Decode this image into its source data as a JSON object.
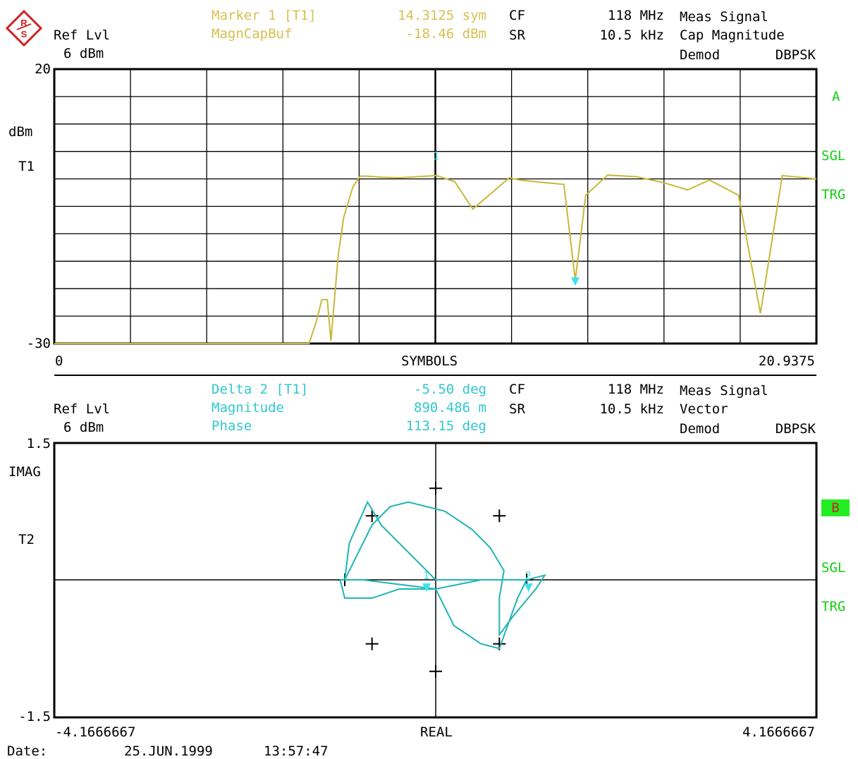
{
  "top": {
    "ref_label": "Ref Lvl",
    "ref_value": "6 dBm",
    "marker_label": "Marker 1 [T1]",
    "marker_value": "14.3125 sym",
    "trace_label": "MagnCapBuf",
    "trace_value": "-18.46 dBm",
    "cf_label": "CF",
    "cf_value": "118 MHz",
    "sr_label": "SR",
    "sr_value": "10.5 kHz",
    "meas_label": "Meas Signal",
    "meas_value": "Cap Magnitude",
    "demod_label": "Demod",
    "demod_value": "DBPSK",
    "side": [
      "A",
      "SGL",
      "TRG"
    ],
    "unit": "dBm",
    "trace": "T1",
    "y_top": "20",
    "y_bottom": "-30",
    "x_left": "0",
    "x_center": "SYMBOLS",
    "x_right": "20.9375",
    "marker_num": "1"
  },
  "bottom": {
    "ref_label": "Ref Lvl",
    "ref_value": "6 dBm",
    "delta_label": "Delta 2 [T1]",
    "delta_value": "-5.50 deg",
    "mag_label": "Magnitude",
    "mag_value": "890.486 m",
    "phase_label": "Phase",
    "phase_value": "113.15 deg",
    "cf_label": "CF",
    "cf_value": "118 MHz",
    "sr_label": "SR",
    "sr_value": "10.5 kHz",
    "meas_label": "Meas Signal",
    "meas_value": "Vector",
    "demod_label": "Demod",
    "demod_value": "DBPSK",
    "side": [
      "B",
      "SGL",
      "TRG"
    ],
    "y_label": "IMAG",
    "trace": "T2",
    "y_top": "1.5",
    "y_bottom": "-1.5",
    "x_left": "-4.1666667",
    "x_center": "REAL",
    "x_right": "4.1666667",
    "marker_nums": [
      "1",
      "2"
    ]
  },
  "footer": {
    "date_label": "Date:",
    "date_value": "25.JUN.1999",
    "time_value": "13:57:47"
  },
  "colors": {
    "trace_top": "#c8b838",
    "trace_bottom": "#20b4b4",
    "marker": "#40e0f0",
    "header_yellow": "#d8c050",
    "header_cyan": "#30c8d0",
    "side_green": "#10d010",
    "badge_bg": "#22ee22",
    "badge_text": "#cc2222"
  },
  "chart_data": [
    {
      "type": "line",
      "title": "",
      "xlabel": "SYMBOLS",
      "ylabel": "dBm",
      "xlim": [
        0,
        20.9375
      ],
      "ylim": [
        -30,
        20
      ],
      "grid": true,
      "series": [
        {
          "x": [
            0,
            7,
            7.2,
            7.35,
            7.5,
            7.6,
            7.8,
            7.95,
            8.2,
            8.4,
            8.6,
            9.0,
            9.5,
            10.5,
            11.0,
            11.5,
            12.5,
            12.8,
            13.2,
            14.0,
            14.3125,
            14.6,
            15.2,
            16.0,
            16.8,
            17.4,
            18.0,
            18.8,
            19.4,
            20.0,
            20.9375
          ],
          "y": [
            -30,
            -30,
            -26,
            -22,
            -22,
            -29.5,
            -14,
            -7,
            -1.5,
            0.5,
            0.5,
            0.3,
            0.2,
            0.6,
            -0.5,
            -5.5,
            0.2,
            -0.2,
            -0.5,
            -1.0,
            -18.46,
            -3.0,
            0.7,
            0.4,
            -0.8,
            -2.0,
            -0.2,
            -3.0,
            -24.5,
            0.6,
            0.0
          ]
        }
      ],
      "markers": [
        {
          "name": "1",
          "x": 14.3125,
          "y": -18.46
        }
      ]
    },
    {
      "type": "scatter",
      "title": "",
      "xlabel": "REAL",
      "ylabel": "IMAG",
      "xlim": [
        -4.1666667,
        4.1666667
      ],
      "ylim": [
        -1.5,
        1.5
      ],
      "grid": false,
      "series": [
        {
          "points": [
            [
              -0.7,
              0.7
            ],
            [
              0.7,
              0.7
            ],
            [
              -1.0,
              0.0
            ],
            [
              1.0,
              0.0
            ],
            [
              -0.7,
              -0.7
            ],
            [
              0.7,
              -0.7
            ],
            [
              0.0,
              1.0
            ],
            [
              0.0,
              -1.0
            ]
          ]
        },
        {
          "x": [
            -1.0,
            -0.7,
            -0.5,
            -0.3,
            0.1,
            0.4,
            0.6,
            0.75,
            0.7,
            0.7,
            0.85,
            1.1,
            1.2,
            1.0,
            0.9,
            0.7,
            0.5,
            0.2,
            0.0,
            -0.4,
            -0.7,
            -1.0,
            -1.05,
            -0.8,
            -0.4,
            0.0,
            0.5,
            1.0,
            0.6,
            0.3,
            0.0,
            -0.3,
            -0.6,
            -0.75,
            -0.95,
            -1.0
          ],
          "y": [
            0.0,
            0.6,
            0.8,
            0.85,
            0.75,
            0.55,
            0.35,
            0.1,
            -0.2,
            -0.6,
            -0.4,
            -0.1,
            0.05,
            0.0,
            -0.2,
            -0.75,
            -0.7,
            -0.5,
            -0.1,
            -0.1,
            -0.2,
            -0.2,
            0.0,
            0.0,
            -0.05,
            -0.1,
            0.0,
            0.0,
            0.0,
            0.0,
            0.0,
            0.3,
            0.6,
            0.85,
            0.4,
            0.0
          ]
        }
      ],
      "markers": [
        {
          "name": "1",
          "x": -0.1,
          "y": -0.07
        },
        {
          "name": "2",
          "x": 1.02,
          "y": -0.07
        }
      ]
    }
  ]
}
